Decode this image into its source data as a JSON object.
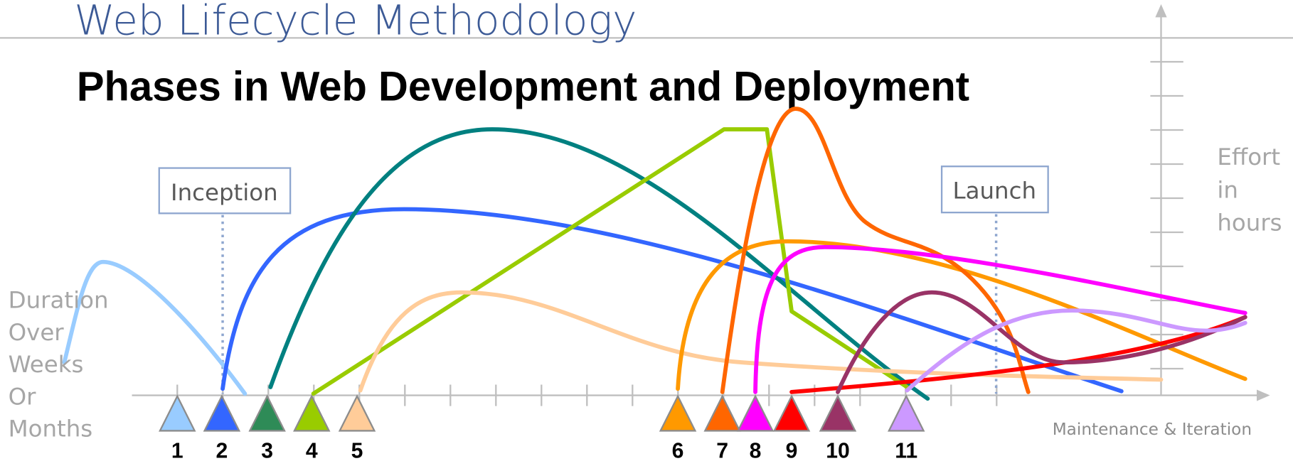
{
  "header": {
    "title": "Web Lifecycle Methodology",
    "subtitle": "Phases in Web Development and Deployment"
  },
  "labels": {
    "inception": "Inception",
    "launch": "Launch",
    "effort": [
      "Effort",
      "in",
      "hours"
    ],
    "duration": [
      "Duration",
      "Over",
      "Weeks",
      "Or",
      "Months"
    ],
    "maintenance": "Maintenance & Iteration"
  },
  "markers": [
    {
      "label": "1",
      "color": "#99ccff"
    },
    {
      "label": "2",
      "color": "#3366ff"
    },
    {
      "label": "3",
      "color": "#2e8b57"
    },
    {
      "label": "4",
      "color": "#99cc00"
    },
    {
      "label": "5",
      "color": "#ffcc99"
    },
    {
      "label": "6",
      "color": "#ff9900"
    },
    {
      "label": "7",
      "color": "#ff6600"
    },
    {
      "label": "8",
      "color": "#ff00ff"
    },
    {
      "label": "9",
      "color": "#ff0000"
    },
    {
      "label": "10",
      "color": "#993366"
    },
    {
      "label": "11",
      "color": "#cc99ff"
    }
  ]
}
